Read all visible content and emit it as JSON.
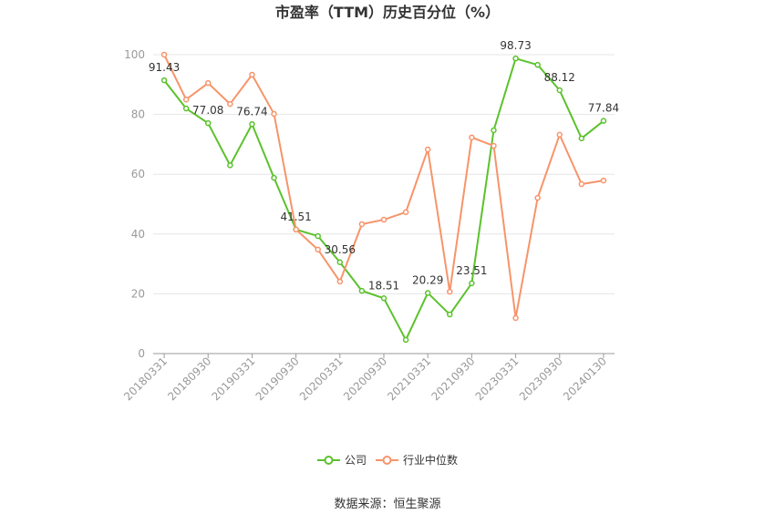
{
  "source": "数据来源：恒生聚源",
  "chart_data": {
    "type": "line",
    "title": "市盈率（TTM）历史百分位（%）",
    "categories": [
      "20180331",
      "",
      "20180930",
      "",
      "20190331",
      "",
      "20190930",
      "",
      "20200331",
      "",
      "20200930",
      "",
      "20210331",
      "",
      "20210930",
      "",
      "20230331",
      "",
      "20230930",
      "",
      "20240130"
    ],
    "ylim": [
      0,
      100
    ],
    "y_ticks": [
      0,
      20,
      40,
      60,
      80,
      100
    ],
    "grid": true,
    "legend_position": "bottom",
    "series": [
      {
        "name": "公司",
        "color": "#5bc22c",
        "values": [
          91.43,
          82.0,
          77.08,
          63.0,
          76.74,
          58.8,
          41.51,
          39.3,
          30.56,
          21.0,
          18.51,
          4.6,
          20.29,
          13.1,
          23.51,
          74.7,
          98.73,
          96.6,
          88.12,
          72.0,
          77.84
        ],
        "data_label_indices": [
          0,
          2,
          4,
          6,
          8,
          10,
          12,
          14,
          16,
          18,
          20
        ]
      },
      {
        "name": "行业中位数",
        "color": "#f7946a",
        "values": [
          100,
          85.0,
          90.5,
          83.5,
          93.3,
          80.2,
          41.5,
          34.8,
          24.1,
          43.3,
          44.8,
          47.3,
          68.3,
          20.7,
          72.3,
          69.5,
          11.9,
          52.1,
          73.2,
          56.7,
          57.9
        ]
      }
    ]
  }
}
